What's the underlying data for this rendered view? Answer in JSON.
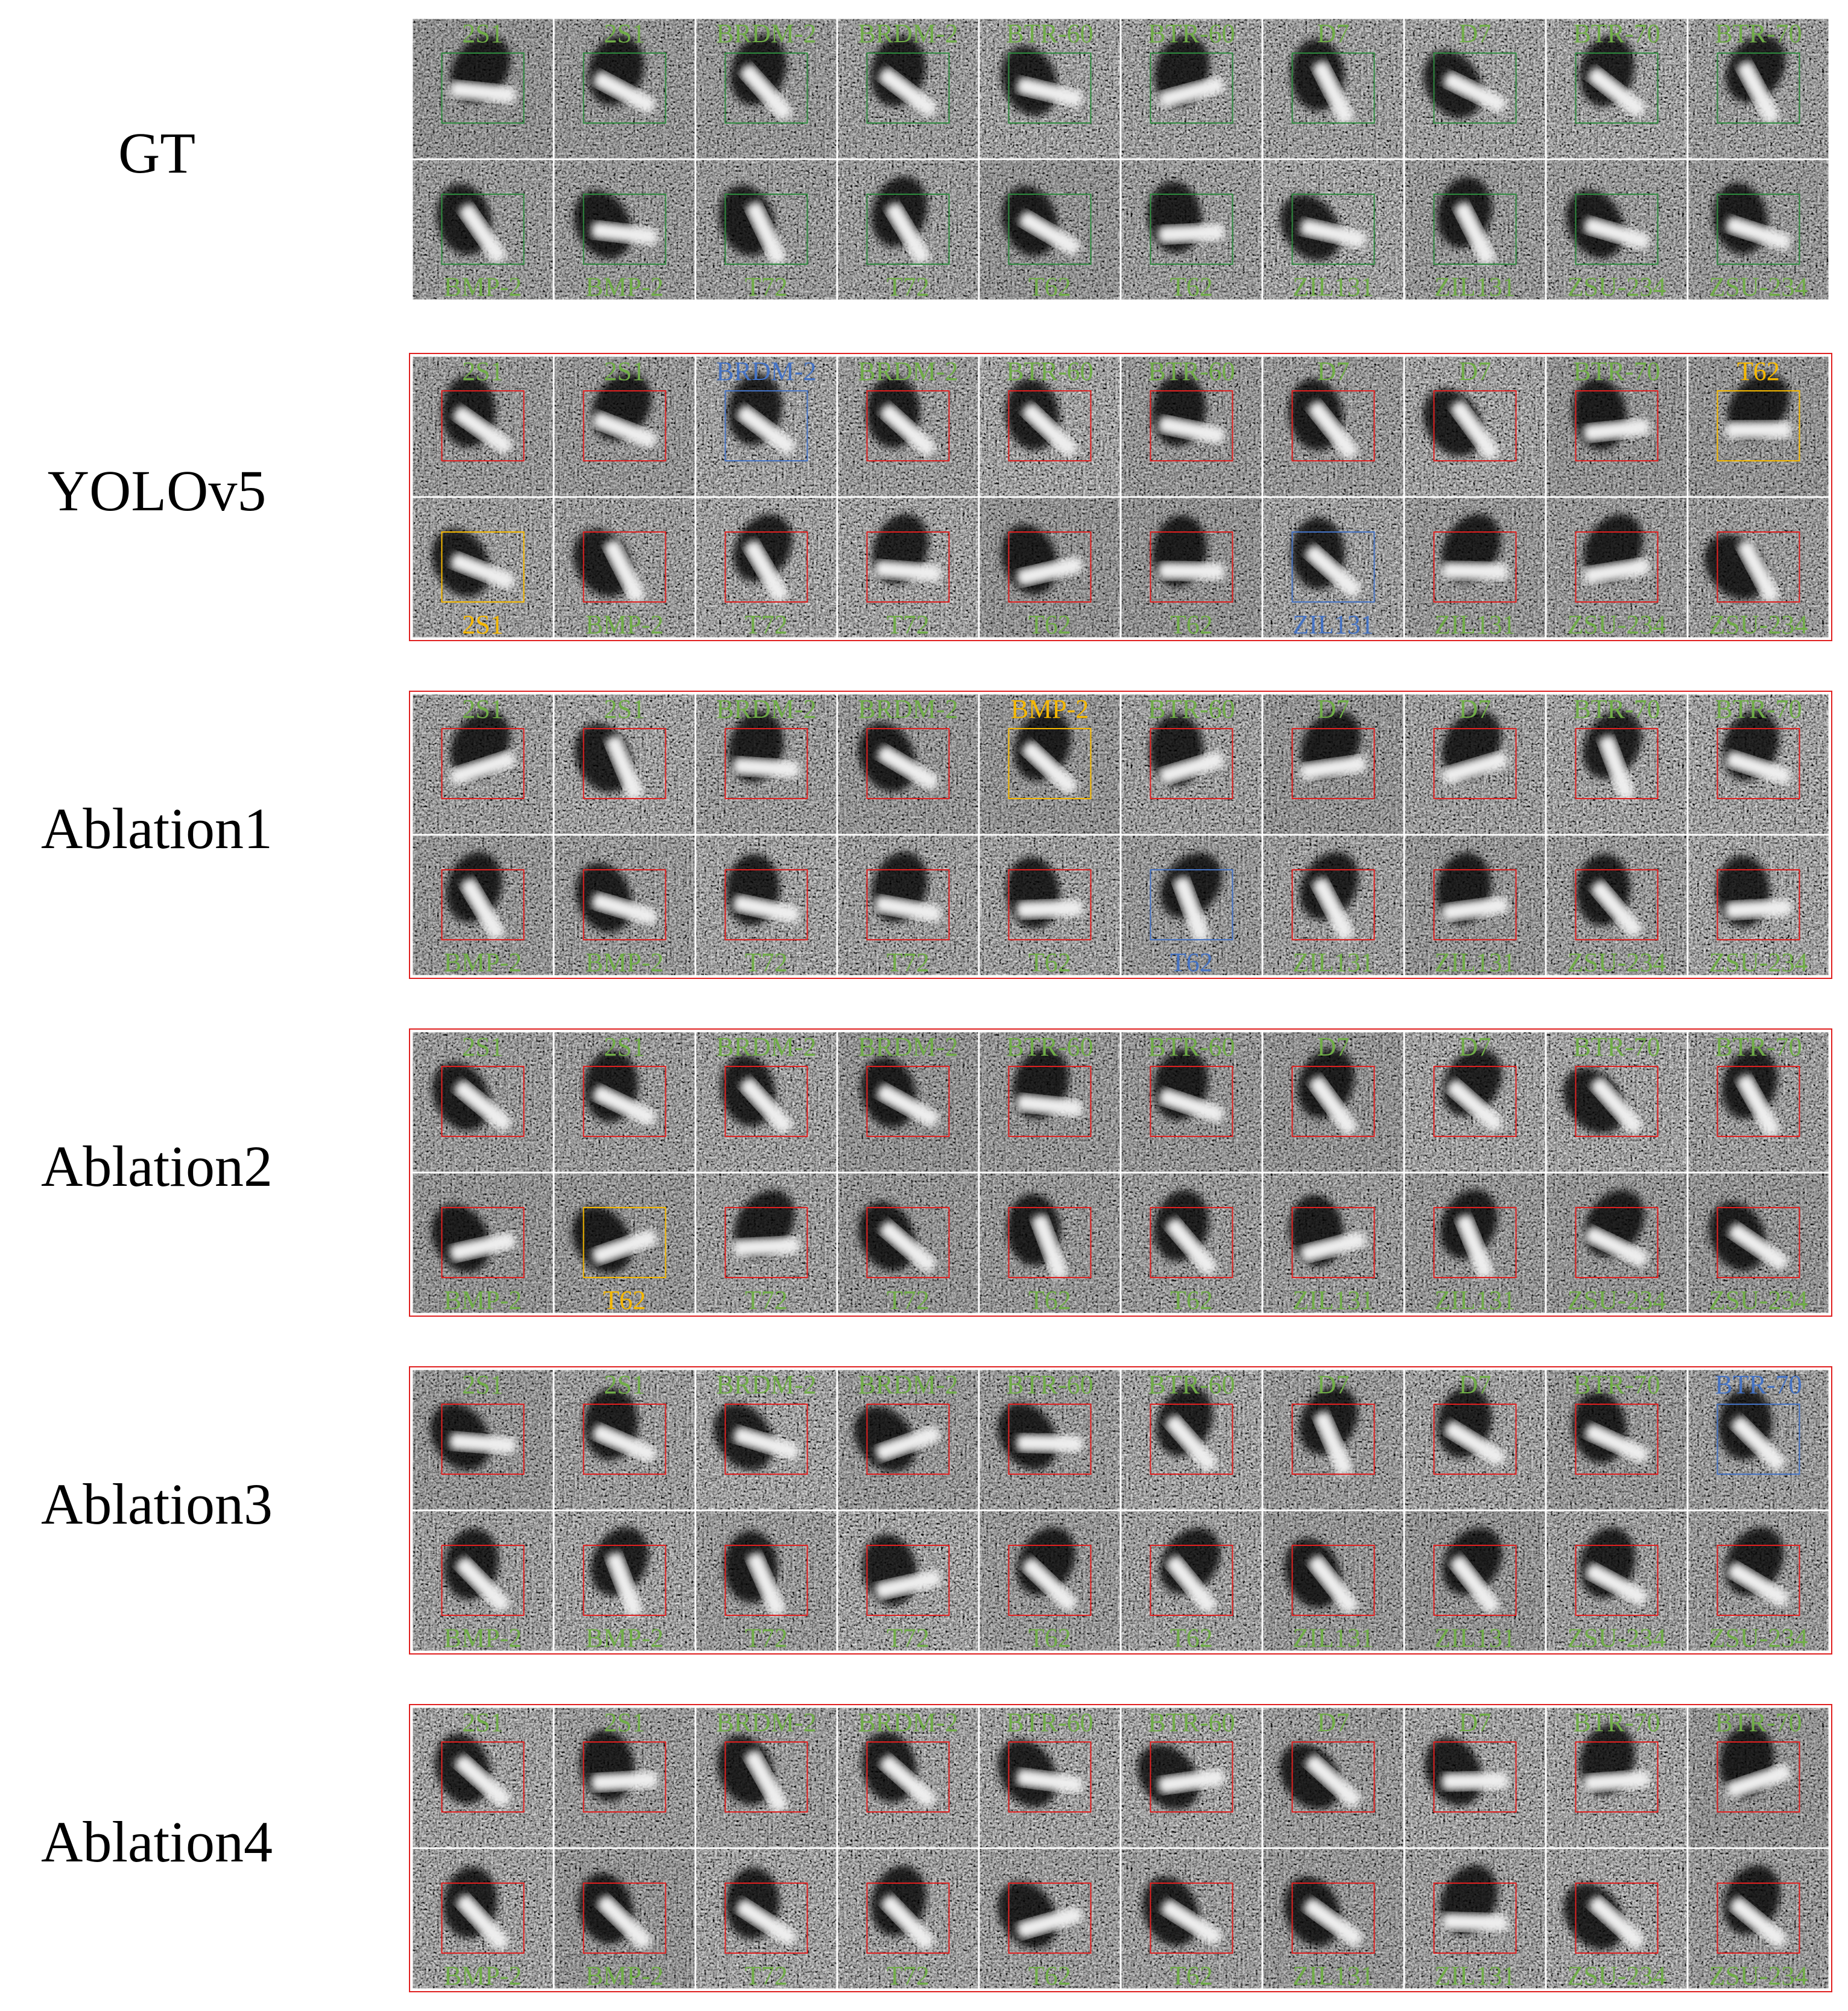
{
  "label_color": "#70ad47",
  "groups": [
    {
      "label": "GT",
      "box_color": "#2e8b3e",
      "top": [
        {
          "text": "2S1"
        },
        {
          "text": "2S1"
        },
        {
          "text": "BRDM-2"
        },
        {
          "text": "BRDM-2"
        },
        {
          "text": "BTR-60"
        },
        {
          "text": "BTR-60"
        },
        {
          "text": "D7"
        },
        {
          "text": "D7"
        },
        {
          "text": "BTR-70"
        },
        {
          "text": "BTR-70"
        }
      ],
      "bottom": [
        {
          "text": "BMP-2"
        },
        {
          "text": "BMP-2"
        },
        {
          "text": "T72"
        },
        {
          "text": "T72"
        },
        {
          "text": "T62"
        },
        {
          "text": "T62"
        },
        {
          "text": "ZIL131"
        },
        {
          "text": "ZIL131"
        },
        {
          "text": "ZSU-234"
        },
        {
          "text": "ZSU-234"
        }
      ]
    },
    {
      "label": "YOLOv5",
      "box_color": "#e02020",
      "top": [
        {
          "text": "2S1"
        },
        {
          "text": "2S1"
        },
        {
          "text": "BRDM-2",
          "color": "#4472c4"
        },
        {
          "text": "BRDM-2"
        },
        {
          "text": "BTR-60"
        },
        {
          "text": "BTR-60"
        },
        {
          "text": "D7"
        },
        {
          "text": "D7"
        },
        {
          "text": "BTR-70"
        },
        {
          "text": "T62",
          "color": "#f5b800"
        }
      ],
      "bottom": [
        {
          "text": "2S1",
          "color": "#f5b800"
        },
        {
          "text": "BMP-2"
        },
        {
          "text": "T72"
        },
        {
          "text": "T72"
        },
        {
          "text": "T62"
        },
        {
          "text": "T62"
        },
        {
          "text": "ZIL131",
          "color": "#4472c4"
        },
        {
          "text": "ZIL131"
        },
        {
          "text": "ZSU-234"
        },
        {
          "text": "ZSU-234"
        }
      ]
    },
    {
      "label": "Ablation1",
      "box_color": "#e02020",
      "top": [
        {
          "text": "2S1"
        },
        {
          "text": "2S1"
        },
        {
          "text": "BRDM-2"
        },
        {
          "text": "BRDM-2"
        },
        {
          "text": "BMP-2",
          "color": "#f5b800"
        },
        {
          "text": "BTR-60"
        },
        {
          "text": "D7"
        },
        {
          "text": "D7"
        },
        {
          "text": "BTR-70"
        },
        {
          "text": "BTR-70"
        }
      ],
      "bottom": [
        {
          "text": "BMP-2"
        },
        {
          "text": "BMP-2"
        },
        {
          "text": "T72"
        },
        {
          "text": "T72"
        },
        {
          "text": "T62"
        },
        {
          "text": "T62",
          "color": "#4472c4"
        },
        {
          "text": "ZIL131"
        },
        {
          "text": "ZIL131"
        },
        {
          "text": "ZSU-234"
        },
        {
          "text": "ZSU-234"
        }
      ]
    },
    {
      "label": "Ablation2",
      "box_color": "#e02020",
      "top": [
        {
          "text": "2S1"
        },
        {
          "text": "2S1"
        },
        {
          "text": "BRDM-2"
        },
        {
          "text": "BRDM-2"
        },
        {
          "text": "BTR-60"
        },
        {
          "text": "BTR-60"
        },
        {
          "text": "D7"
        },
        {
          "text": "D7"
        },
        {
          "text": "BTR-70"
        },
        {
          "text": "BTR-70"
        }
      ],
      "bottom": [
        {
          "text": "BMP-2"
        },
        {
          "text": "T62",
          "color": "#f5b800"
        },
        {
          "text": "T72"
        },
        {
          "text": "T72"
        },
        {
          "text": "T62"
        },
        {
          "text": "T62"
        },
        {
          "text": "ZIL131"
        },
        {
          "text": "ZIL131"
        },
        {
          "text": "ZSU-234"
        },
        {
          "text": "ZSU-234"
        }
      ]
    },
    {
      "label": "Ablation3",
      "box_color": "#e02020",
      "top": [
        {
          "text": "2S1"
        },
        {
          "text": "2S1"
        },
        {
          "text": "BRDM-2"
        },
        {
          "text": "BRDM-2"
        },
        {
          "text": "BTR-60"
        },
        {
          "text": "BTR-60"
        },
        {
          "text": "D7"
        },
        {
          "text": "D7"
        },
        {
          "text": "BTR-70"
        },
        {
          "text": "BTR-70",
          "color": "#4472c4"
        }
      ],
      "bottom": [
        {
          "text": "BMP-2"
        },
        {
          "text": "BMP-2"
        },
        {
          "text": "T72"
        },
        {
          "text": "T72"
        },
        {
          "text": "T62"
        },
        {
          "text": "T62"
        },
        {
          "text": "ZIL131"
        },
        {
          "text": "ZIL131"
        },
        {
          "text": "ZSU-234"
        },
        {
          "text": "ZSU-234"
        }
      ]
    },
    {
      "label": "Ablation4",
      "box_color": "#e02020",
      "top": [
        {
          "text": "2S1"
        },
        {
          "text": "2S1"
        },
        {
          "text": "BRDM-2"
        },
        {
          "text": "BRDM-2"
        },
        {
          "text": "BTR-60"
        },
        {
          "text": "BTR-60"
        },
        {
          "text": "D7"
        },
        {
          "text": "D7"
        },
        {
          "text": "BTR-70"
        },
        {
          "text": "BTR-70"
        }
      ],
      "bottom": [
        {
          "text": "BMP-2"
        },
        {
          "text": "BMP-2"
        },
        {
          "text": "T72"
        },
        {
          "text": "T72"
        },
        {
          "text": "T62"
        },
        {
          "text": "T62"
        },
        {
          "text": "ZIL131"
        },
        {
          "text": "ZIL131"
        },
        {
          "text": "ZSU-234"
        },
        {
          "text": "ZSU-234"
        }
      ]
    }
  ]
}
